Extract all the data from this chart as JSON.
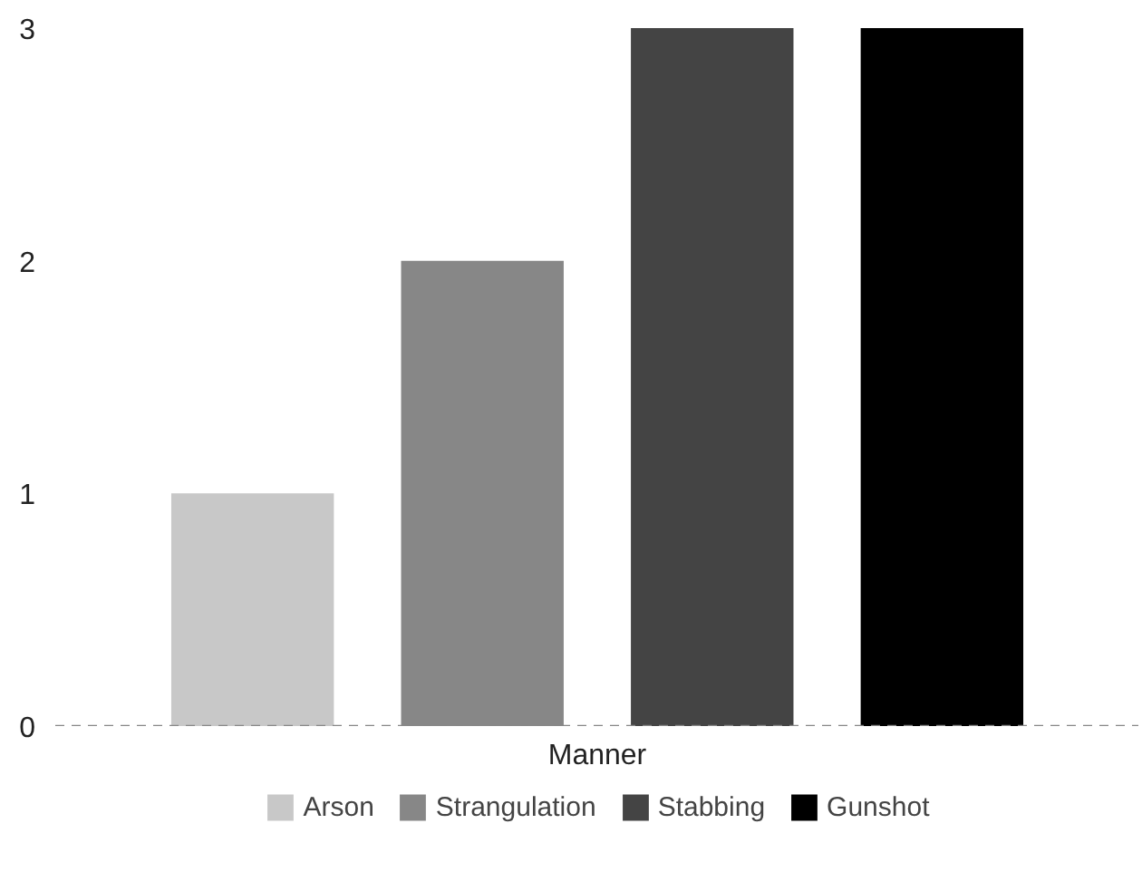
{
  "chart_data": {
    "type": "bar",
    "categories": [
      "Manner"
    ],
    "series": [
      {
        "name": "Arson",
        "color": "#c8c8c8",
        "values": [
          1
        ]
      },
      {
        "name": "Strangulation",
        "color": "#878787",
        "values": [
          2
        ]
      },
      {
        "name": "Stabbing",
        "color": "#444444",
        "values": [
          3
        ]
      },
      {
        "name": "Gunshot",
        "color": "#000000",
        "values": [
          3
        ]
      }
    ],
    "ylim": [
      0,
      3
    ],
    "yticks": [
      0,
      1,
      2,
      3
    ],
    "grid": false,
    "legend": "bottom",
    "ref_lines": [
      {
        "axis": "y",
        "value": 0,
        "color": "#888888",
        "line_style": "dashed"
      }
    ]
  }
}
